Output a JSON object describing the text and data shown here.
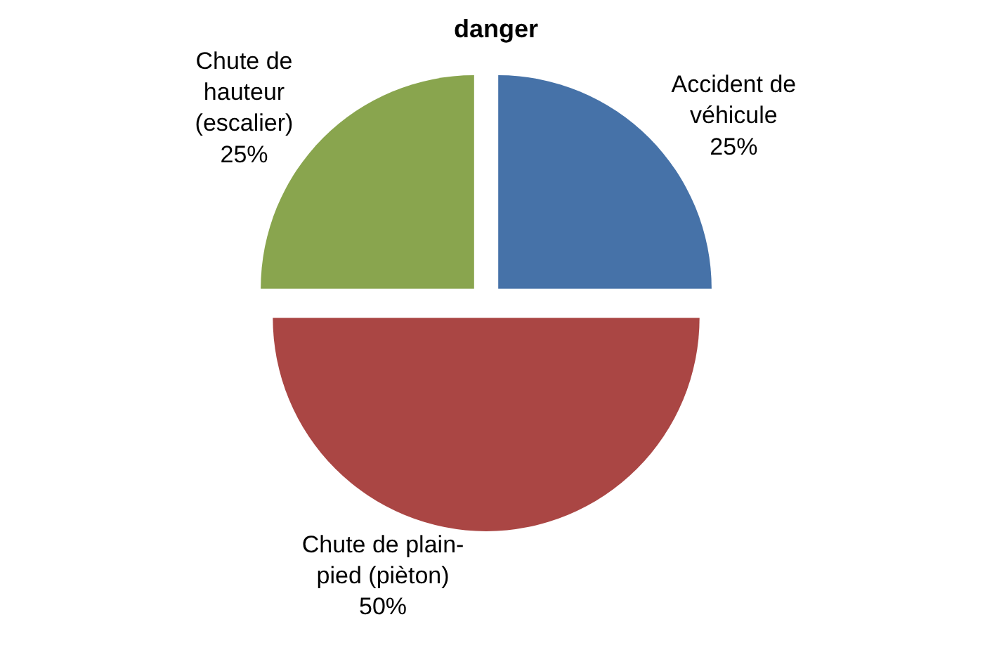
{
  "chart_data": {
    "type": "pie",
    "title": "danger",
    "categories": [
      "Accident de\nvéhicule",
      "Chute de plain-\npied (pièton)",
      "Chute de\nhauteur\n(escalier)"
    ],
    "values": [
      25,
      50,
      25
    ],
    "value_labels": [
      "25%",
      "50%",
      "25%"
    ],
    "colors": [
      "#4672a8",
      "#aa4644",
      "#89a54e"
    ],
    "legend": false
  }
}
